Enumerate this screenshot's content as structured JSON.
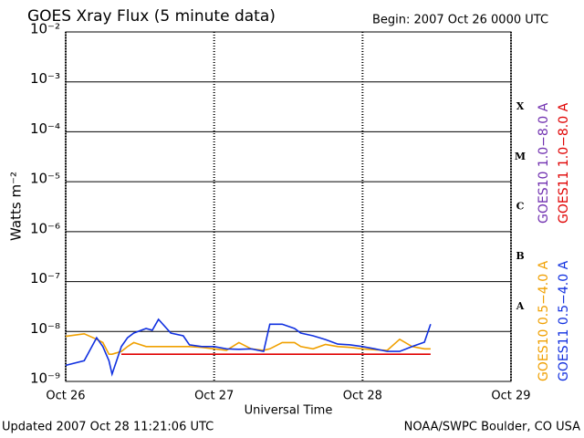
{
  "chart_data": {
    "type": "line",
    "title": "GOES Xray Flux (5 minute data)",
    "subtitle": "Begin:  2007 Oct 26 0000 UTC",
    "x_label": "Universal Time",
    "y_label": "Watts m⁻²",
    "footer_left": "Updated 2007 Oct 28 11:21:06 UTC",
    "footer_right": "NOAA/SWPC Boulder, CO USA",
    "flare_classes": [
      "X",
      "M",
      "C",
      "B",
      "A"
    ],
    "log_y": true,
    "grid": true,
    "xlim": [
      0,
      72
    ],
    "xticks": [
      {
        "value": 0,
        "label": "Oct 26"
      },
      {
        "value": 24,
        "label": "Oct 27"
      },
      {
        "value": 48,
        "label": "Oct 28"
      },
      {
        "value": 72,
        "label": "Oct 29"
      }
    ],
    "ylim": [
      1e-09,
      0.01
    ],
    "yticks": [
      {
        "value": 1e-09,
        "label": "10⁻⁹"
      },
      {
        "value": 1e-08,
        "label": "10⁻⁸"
      },
      {
        "value": 1e-07,
        "label": "10⁻⁷"
      },
      {
        "value": 1e-06,
        "label": "10⁻⁶"
      },
      {
        "value": 1e-05,
        "label": "10⁻⁵"
      },
      {
        "value": 0.0001,
        "label": "10⁻⁴"
      },
      {
        "value": 0.001,
        "label": "10⁻³"
      },
      {
        "value": 0.01,
        "label": "10⁻²"
      }
    ],
    "x": [
      0,
      3,
      5,
      6,
      7,
      7.5,
      9,
      10,
      11,
      13,
      14,
      15,
      17,
      19,
      20,
      22,
      24,
      26,
      28,
      30,
      32,
      33,
      35,
      37,
      38,
      40,
      42,
      44,
      46,
      48,
      50,
      52,
      54,
      56,
      58,
      59
    ],
    "series": [
      {
        "name": "GOES10 1.0−8.0 A",
        "color": "#7030b0",
        "values": [
          null,
          null,
          null,
          null,
          null,
          null,
          null,
          null,
          null,
          null,
          null,
          null,
          null,
          null,
          null,
          null,
          null,
          null,
          null,
          null,
          null,
          null,
          null,
          null,
          null,
          null,
          null,
          null,
          null,
          null,
          null,
          null,
          null,
          null,
          null,
          null
        ]
      },
      {
        "name": "GOES11 1.0−8.0 A",
        "color": "#e00000",
        "values": [
          null,
          null,
          null,
          null,
          null,
          null,
          3.5e-09,
          3.5e-09,
          3.5e-09,
          3.5e-09,
          3.5e-09,
          3.5e-09,
          3.5e-09,
          3.5e-09,
          3.5e-09,
          3.5e-09,
          3.5e-09,
          3.5e-09,
          3.5e-09,
          3.5e-09,
          3.5e-09,
          3.5e-09,
          3.5e-09,
          3.5e-09,
          3.5e-09,
          3.5e-09,
          3.5e-09,
          3.5e-09,
          3.5e-09,
          3.5e-09,
          3.5e-09,
          3.5e-09,
          3.5e-09,
          3.5e-09,
          3.5e-09,
          3.5e-09
        ]
      },
      {
        "name": "GOES10 0.5−4.0 A",
        "color": "#f0a000",
        "values": [
          8e-09,
          9e-09,
          7e-09,
          6e-09,
          3.5e-09,
          3.5e-09,
          4e-09,
          5e-09,
          6e-09,
          5e-09,
          5e-09,
          5e-09,
          5e-09,
          5e-09,
          5e-09,
          4.8e-09,
          4.5e-09,
          4.2e-09,
          6e-09,
          4.5e-09,
          4.2e-09,
          4.5e-09,
          6e-09,
          6e-09,
          5e-09,
          4.5e-09,
          5.5e-09,
          5e-09,
          4.8e-09,
          4.5e-09,
          4.3e-09,
          4.2e-09,
          7e-09,
          5e-09,
          4.5e-09,
          4.5e-09
        ]
      },
      {
        "name": "GOES11 0.5−4.0 A",
        "color": "#1030e0",
        "values": [
          2.1e-09,
          2.6e-09,
          7.5e-09,
          5e-09,
          2.6e-09,
          1.4e-09,
          5e-09,
          7.5e-09,
          9.3e-09,
          1.15e-08,
          1.06e-08,
          1.75e-08,
          9.3e-09,
          8.2e-09,
          5.4e-09,
          5e-09,
          5e-09,
          4.5e-09,
          4.4e-09,
          4.5e-09,
          4e-09,
          1.4e-08,
          1.4e-08,
          1.15e-08,
          9.3e-09,
          8.2e-09,
          6.9e-09,
          5.6e-09,
          5.4e-09,
          5e-09,
          4.5e-09,
          4e-09,
          4e-09,
          5e-09,
          6.1e-09,
          1.4e-08
        ]
      }
    ]
  }
}
